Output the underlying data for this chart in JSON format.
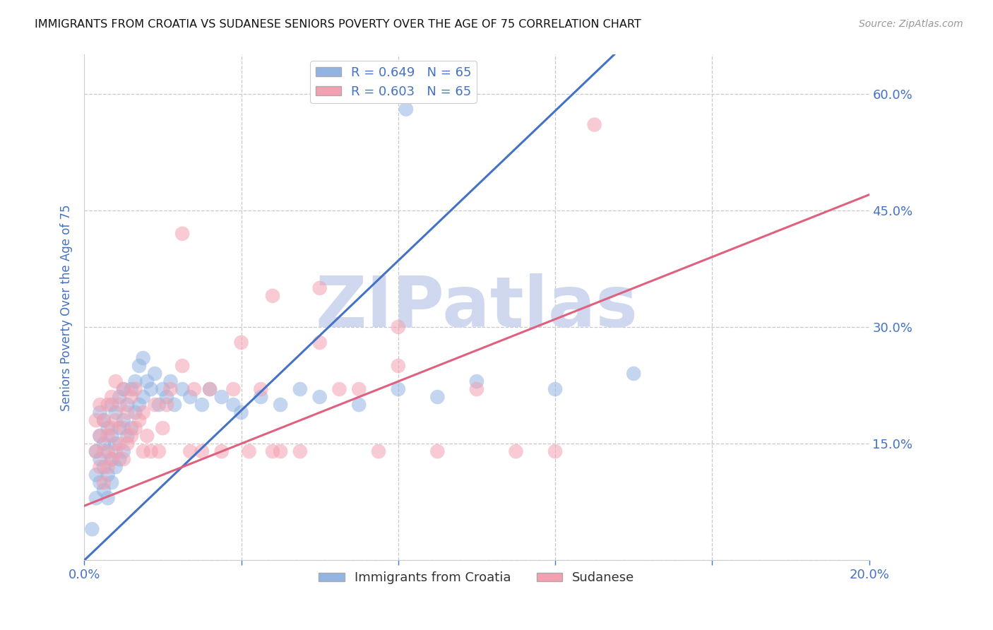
{
  "title": "IMMIGRANTS FROM CROATIA VS SUDANESE SENIORS POVERTY OVER THE AGE OF 75 CORRELATION CHART",
  "source": "Source: ZipAtlas.com",
  "ylabel": "Seniors Poverty Over the Age of 75",
  "xlim": [
    0.0,
    0.2
  ],
  "ylim": [
    0.0,
    0.65
  ],
  "yticks": [
    0.0,
    0.15,
    0.3,
    0.45,
    0.6
  ],
  "xticks": [
    0.0,
    0.04,
    0.08,
    0.12,
    0.16,
    0.2
  ],
  "croatia_R": 0.649,
  "croatia_N": 65,
  "sudanese_R": 0.603,
  "sudanese_N": 65,
  "croatia_color": "#92b4e3",
  "sudanese_color": "#f4a0b0",
  "croatia_line_color": "#4472c4",
  "sudanese_line_color": "#e06080",
  "watermark": "ZIPatlas",
  "watermark_color": "#d0d8f0",
  "axis_label_color": "#4472c4",
  "tick_label_color": "#4472c4",
  "grid_color": "#c8c8c8",
  "background_color": "#ffffff",
  "croatia_line_x0": 0.0,
  "croatia_line_y0": 0.0,
  "croatia_line_x1": 0.135,
  "croatia_line_y1": 0.65,
  "sudanese_line_x0": 0.0,
  "sudanese_line_y0": 0.07,
  "sudanese_line_x1": 0.2,
  "sudanese_line_y1": 0.47,
  "croatia_scatter_x": [
    0.002,
    0.003,
    0.003,
    0.003,
    0.004,
    0.004,
    0.004,
    0.004,
    0.005,
    0.005,
    0.005,
    0.005,
    0.006,
    0.006,
    0.006,
    0.006,
    0.007,
    0.007,
    0.007,
    0.007,
    0.008,
    0.008,
    0.008,
    0.009,
    0.009,
    0.009,
    0.01,
    0.01,
    0.01,
    0.011,
    0.011,
    0.012,
    0.012,
    0.013,
    0.013,
    0.014,
    0.014,
    0.015,
    0.015,
    0.016,
    0.017,
    0.018,
    0.019,
    0.02,
    0.021,
    0.022,
    0.023,
    0.025,
    0.027,
    0.03,
    0.032,
    0.035,
    0.038,
    0.04,
    0.045,
    0.05,
    0.055,
    0.06,
    0.07,
    0.08,
    0.082,
    0.09,
    0.1,
    0.12,
    0.14
  ],
  "croatia_scatter_y": [
    0.04,
    0.08,
    0.11,
    0.14,
    0.1,
    0.13,
    0.16,
    0.19,
    0.09,
    0.12,
    0.15,
    0.18,
    0.08,
    0.11,
    0.14,
    0.17,
    0.1,
    0.13,
    0.16,
    0.2,
    0.12,
    0.15,
    0.19,
    0.13,
    0.17,
    0.21,
    0.14,
    0.18,
    0.22,
    0.16,
    0.2,
    0.17,
    0.22,
    0.19,
    0.23,
    0.2,
    0.25,
    0.21,
    0.26,
    0.23,
    0.22,
    0.24,
    0.2,
    0.22,
    0.21,
    0.23,
    0.2,
    0.22,
    0.21,
    0.2,
    0.22,
    0.21,
    0.2,
    0.19,
    0.21,
    0.2,
    0.22,
    0.21,
    0.2,
    0.22,
    0.58,
    0.21,
    0.23,
    0.22,
    0.24
  ],
  "sudanese_scatter_x": [
    0.003,
    0.003,
    0.004,
    0.004,
    0.004,
    0.005,
    0.005,
    0.005,
    0.006,
    0.006,
    0.006,
    0.007,
    0.007,
    0.007,
    0.008,
    0.008,
    0.008,
    0.009,
    0.009,
    0.01,
    0.01,
    0.01,
    0.011,
    0.011,
    0.012,
    0.012,
    0.013,
    0.013,
    0.014,
    0.015,
    0.015,
    0.016,
    0.017,
    0.018,
    0.019,
    0.02,
    0.021,
    0.022,
    0.025,
    0.027,
    0.028,
    0.03,
    0.032,
    0.035,
    0.038,
    0.04,
    0.042,
    0.045,
    0.048,
    0.05,
    0.055,
    0.06,
    0.065,
    0.07,
    0.075,
    0.08,
    0.09,
    0.1,
    0.11,
    0.12,
    0.025,
    0.048,
    0.06,
    0.13,
    0.08
  ],
  "sudanese_scatter_y": [
    0.14,
    0.18,
    0.12,
    0.16,
    0.2,
    0.1,
    0.14,
    0.18,
    0.12,
    0.16,
    0.2,
    0.13,
    0.17,
    0.21,
    0.14,
    0.18,
    0.23,
    0.15,
    0.2,
    0.13,
    0.17,
    0.22,
    0.15,
    0.19,
    0.16,
    0.21,
    0.17,
    0.22,
    0.18,
    0.14,
    0.19,
    0.16,
    0.14,
    0.2,
    0.14,
    0.17,
    0.2,
    0.22,
    0.25,
    0.14,
    0.22,
    0.14,
    0.22,
    0.14,
    0.22,
    0.28,
    0.14,
    0.22,
    0.14,
    0.14,
    0.14,
    0.28,
    0.22,
    0.22,
    0.14,
    0.3,
    0.14,
    0.22,
    0.14,
    0.14,
    0.42,
    0.34,
    0.35,
    0.56,
    0.25
  ]
}
